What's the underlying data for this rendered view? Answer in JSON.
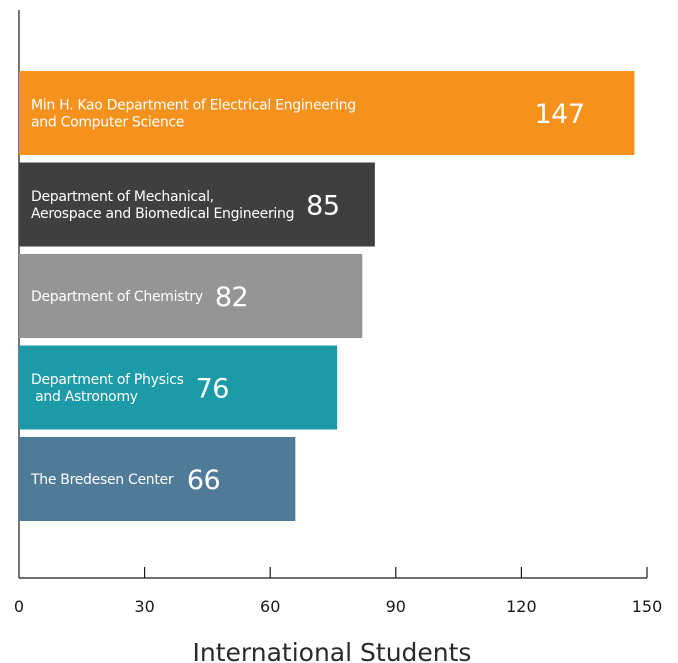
{
  "chart_data": {
    "type": "bar",
    "orientation": "horizontal",
    "categories": [
      [
        "Min H. Kao Department of Electrical Engineering",
        "and Computer Science"
      ],
      [
        "Department of Mechanical,",
        "Aerospace and Biomedical Engineering"
      ],
      [
        "Department of Chemistry"
      ],
      [
        "Department of Physics",
        " and Astronomy"
      ],
      [
        "The Bredesen Center"
      ]
    ],
    "values": [
      147,
      85,
      82,
      76,
      66
    ],
    "colors": [
      "#f5921e",
      "#3f3f3f",
      "#959595",
      "#1c9aa8",
      "#4f7a98"
    ],
    "xlabel": "International Students",
    "xlim": [
      0,
      150
    ],
    "xticks": [
      0,
      30,
      60,
      90,
      120,
      150
    ],
    "xtick_labels": [
      "0",
      "30",
      "60",
      "90",
      "120",
      "150"
    ],
    "grid": false,
    "data_labels": true
  }
}
